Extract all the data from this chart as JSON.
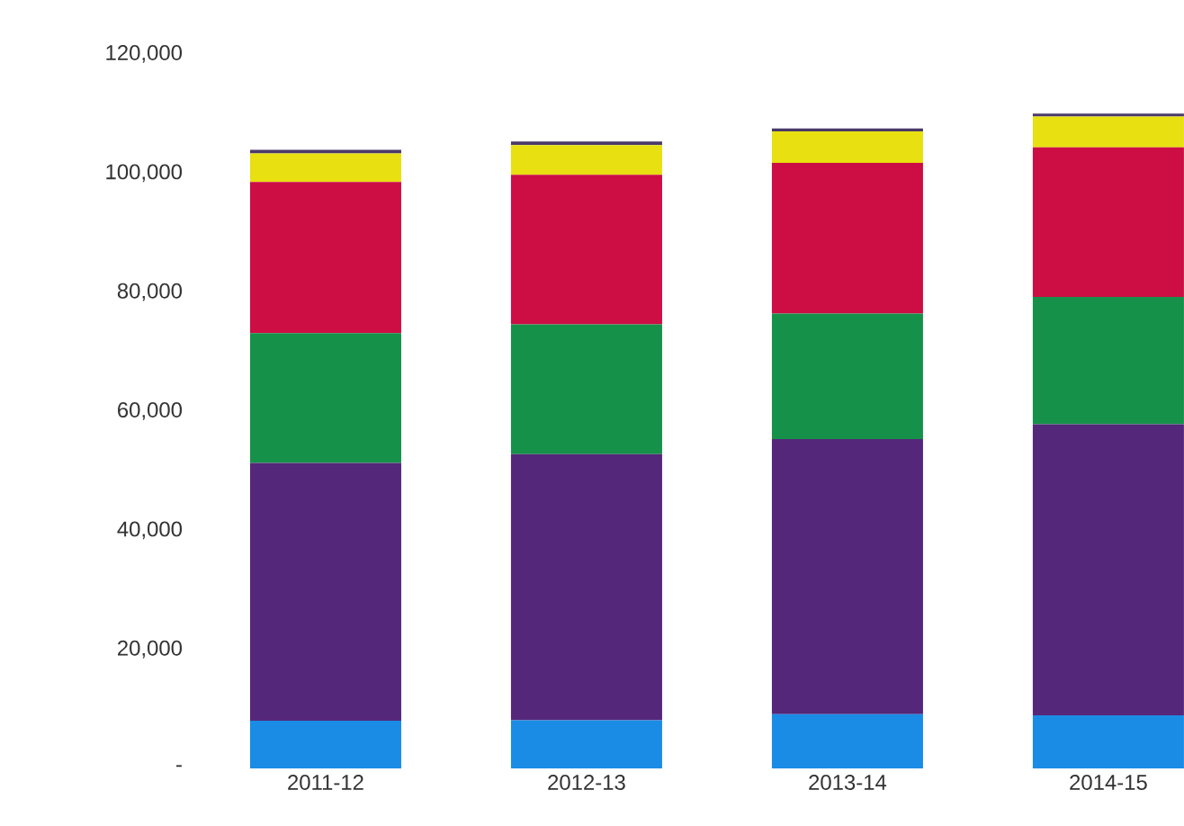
{
  "chart_data": {
    "type": "bar",
    "stacked": true,
    "categories": [
      "2011-12",
      "2012-13",
      "2013-14",
      "2014-15"
    ],
    "series": [
      {
        "color": "#1a8ce6",
        "values": [
          8000,
          8100,
          9100,
          8900
        ]
      },
      {
        "color": "#55277a",
        "values": [
          43300,
          44700,
          46200,
          48900
        ]
      },
      {
        "color": "#16914a",
        "values": [
          21800,
          21800,
          21100,
          21400
        ]
      },
      {
        "color": "#cc0e44",
        "values": [
          25400,
          25100,
          25300,
          25100
        ]
      },
      {
        "color": "#e8e010",
        "values": [
          4800,
          5000,
          5300,
          5200
        ]
      },
      {
        "color": "#4a3a6a",
        "values": [
          600,
          600,
          500,
          500
        ]
      }
    ],
    "ylim": [
      0,
      120000
    ],
    "yticks": [
      {
        "value": 0,
        "label": "-"
      },
      {
        "value": 20000,
        "label": "20,000"
      },
      {
        "value": 40000,
        "label": "40,000"
      },
      {
        "value": 60000,
        "label": "60,000"
      },
      {
        "value": 80000,
        "label": "80,000"
      },
      {
        "value": 100000,
        "label": "100,000"
      },
      {
        "value": 120000,
        "label": "120,000"
      }
    ]
  }
}
